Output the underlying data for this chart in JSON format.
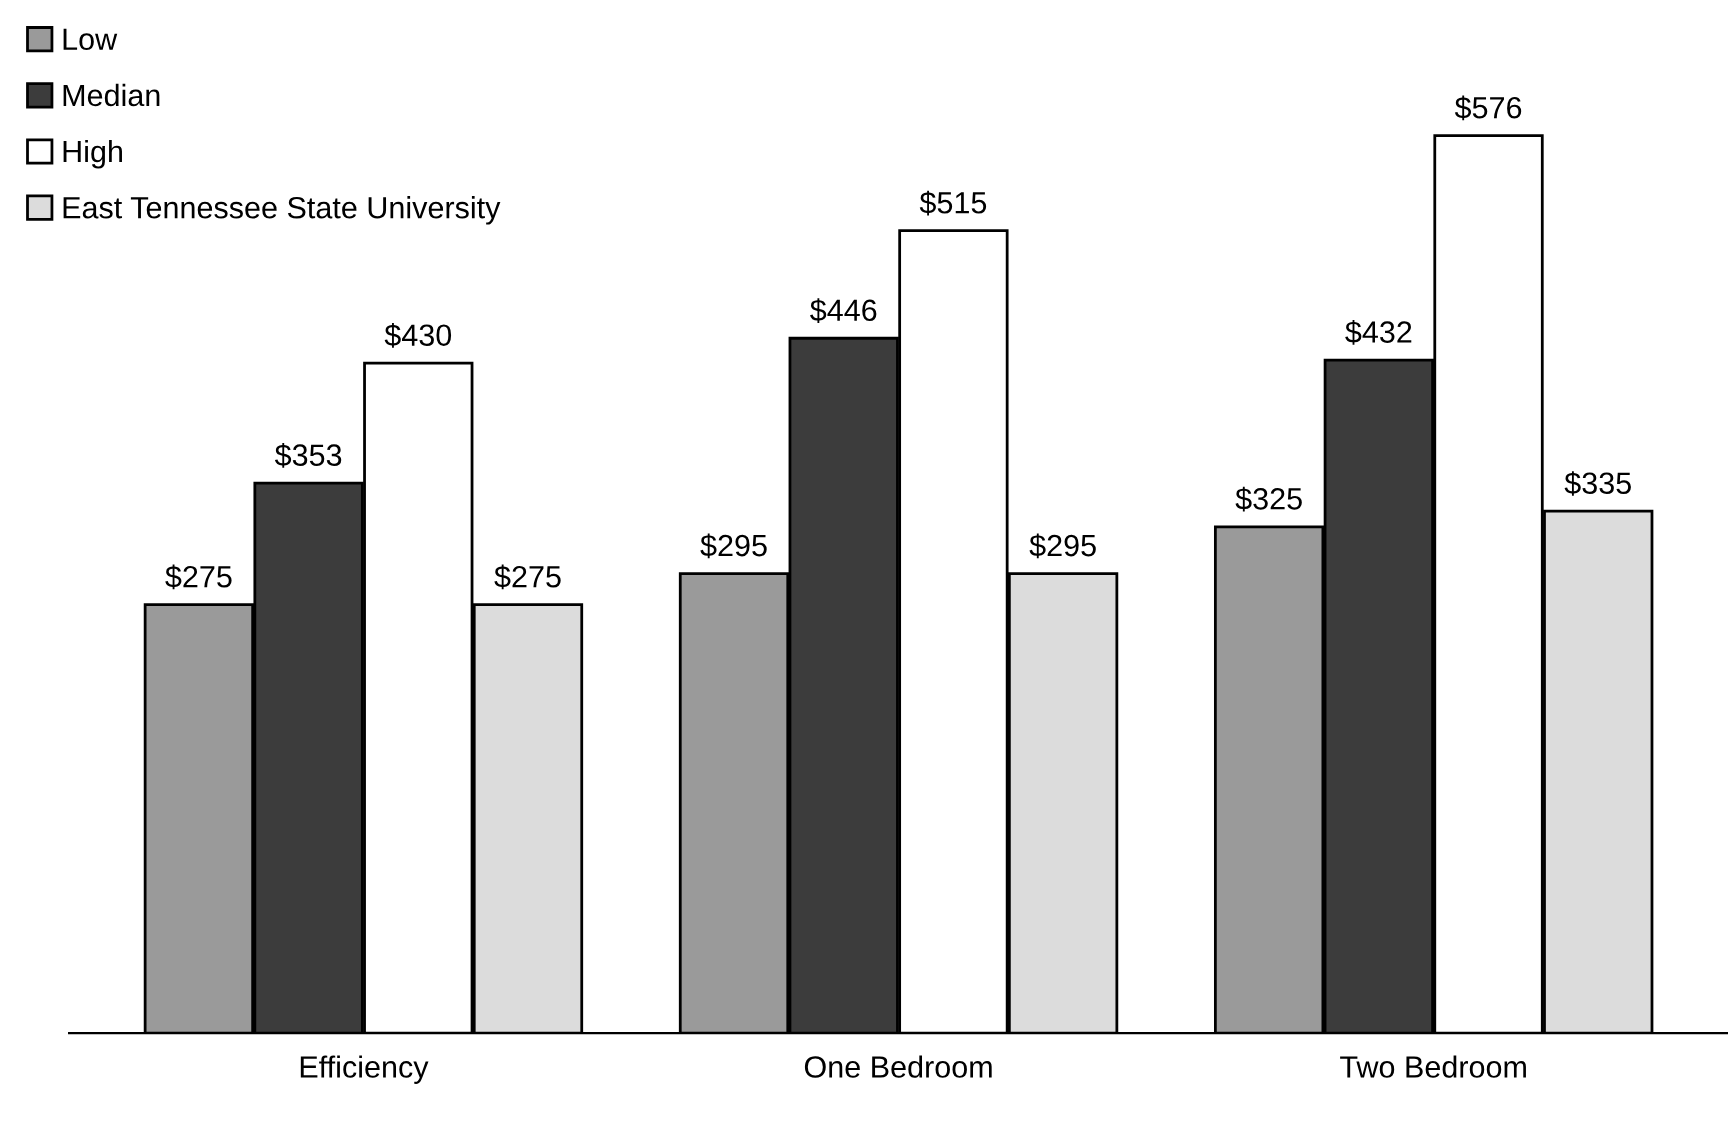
{
  "chart_data": {
    "type": "bar",
    "categories": [
      "Efficiency",
      "One Bedroom",
      "Two Bedroom"
    ],
    "series": [
      {
        "name": "Low",
        "color": "#9a9a9a",
        "values": [
          275,
          295,
          325
        ],
        "value_labels": [
          "$275",
          "$295",
          "$325"
        ]
      },
      {
        "name": "Median",
        "color": "#3c3c3c",
        "values": [
          353,
          446,
          432
        ],
        "value_labels": [
          "$353",
          "$446",
          "$432"
        ]
      },
      {
        "name": "High",
        "color": "#ffffff",
        "values": [
          430,
          515,
          576
        ],
        "value_labels": [
          "$430",
          "$515",
          "$576"
        ]
      },
      {
        "name": "East Tennessee State University",
        "color": "#dcdcdc",
        "values": [
          275,
          295,
          335
        ],
        "value_labels": [
          "$275",
          "$295",
          "$335"
        ]
      }
    ],
    "legend": "top left",
    "grid": false
  }
}
